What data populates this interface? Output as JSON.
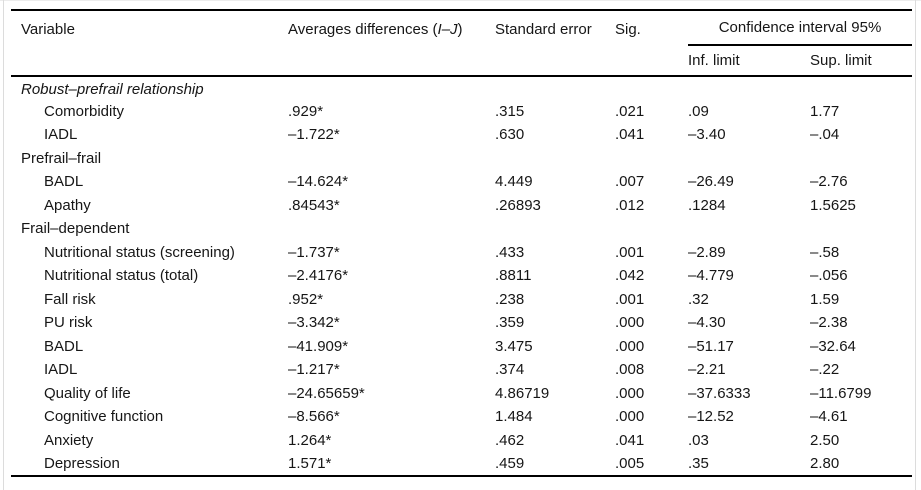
{
  "table": {
    "colors": {
      "text": "#161616",
      "rule": "#000000",
      "scan_border": "#dcdcdc",
      "background": "#ffffff"
    },
    "headers": {
      "variable": "Variable",
      "avg_prefix": "Averages differences (",
      "avg_italic": "I–J",
      "avg_suffix": ")",
      "std_error": "Standard error",
      "sig": "Sig.",
      "ci_group": "Confidence interval 95%",
      "inf_limit": "Inf. limit",
      "sup_limit": "Sup. limit"
    },
    "rows": [
      {
        "type": "section",
        "italic": true,
        "variable": "Robust–prefrail relationship"
      },
      {
        "type": "data",
        "variable": "Comorbidity",
        "avg_diff": ".929*",
        "std_error": ".315",
        "sig": ".021",
        "inf_limit": ".09",
        "sup_limit": "1.77"
      },
      {
        "type": "data",
        "variable": "IADL",
        "avg_diff": "–1.722*",
        "std_error": ".630",
        "sig": ".041",
        "inf_limit": "–3.40",
        "sup_limit": "–.04"
      },
      {
        "type": "section",
        "italic": false,
        "variable": "Prefrail–frail"
      },
      {
        "type": "data",
        "variable": "BADL",
        "avg_diff": "–14.624*",
        "std_error": "4.449",
        "sig": ".007",
        "inf_limit": "–26.49",
        "sup_limit": "–2.76"
      },
      {
        "type": "data",
        "variable": "Apathy",
        "avg_diff": ".84543*",
        "std_error": ".26893",
        "sig": ".012",
        "inf_limit": ".1284",
        "sup_limit": "1.5625"
      },
      {
        "type": "section",
        "italic": false,
        "variable": "Frail–dependent"
      },
      {
        "type": "data",
        "variable": "Nutritional status (screening)",
        "avg_diff": "–1.737*",
        "std_error": ".433",
        "sig": ".001",
        "inf_limit": "–2.89",
        "sup_limit": "–.58"
      },
      {
        "type": "data",
        "variable": "Nutritional status (total)",
        "avg_diff": "–2.4176*",
        "std_error": ".8811",
        "sig": ".042",
        "inf_limit": "–4.779",
        "sup_limit": "–.056"
      },
      {
        "type": "data",
        "variable": "Fall risk",
        "avg_diff": ".952*",
        "std_error": ".238",
        "sig": ".001",
        "inf_limit": ".32",
        "sup_limit": "1.59"
      },
      {
        "type": "data",
        "variable": "PU risk",
        "avg_diff": "–3.342*",
        "std_error": ".359",
        "sig": ".000",
        "inf_limit": "–4.30",
        "sup_limit": "–2.38"
      },
      {
        "type": "data",
        "variable": "BADL",
        "avg_diff": "–41.909*",
        "std_error": "3.475",
        "sig": ".000",
        "inf_limit": "–51.17",
        "sup_limit": "–32.64"
      },
      {
        "type": "data",
        "variable": "IADL",
        "avg_diff": "–1.217*",
        "std_error": ".374",
        "sig": ".008",
        "inf_limit": "–2.21",
        "sup_limit": "–.22"
      },
      {
        "type": "data",
        "variable": "Quality of life",
        "avg_diff": "–24.65659*",
        "std_error": "4.86719",
        "sig": ".000",
        "inf_limit": "–37.6333",
        "sup_limit": "–11.6799"
      },
      {
        "type": "data",
        "variable": "Cognitive function",
        "avg_diff": "–8.566*",
        "std_error": "1.484",
        "sig": ".000",
        "inf_limit": "–12.52",
        "sup_limit": "–4.61"
      },
      {
        "type": "data",
        "variable": "Anxiety",
        "avg_diff": "1.264*",
        "std_error": ".462",
        "sig": ".041",
        "inf_limit": ".03",
        "sup_limit": "2.50"
      },
      {
        "type": "data",
        "variable": "Depression",
        "avg_diff": "1.571*",
        "std_error": ".459",
        "sig": ".005",
        "inf_limit": ".35",
        "sup_limit": "2.80"
      }
    ]
  }
}
